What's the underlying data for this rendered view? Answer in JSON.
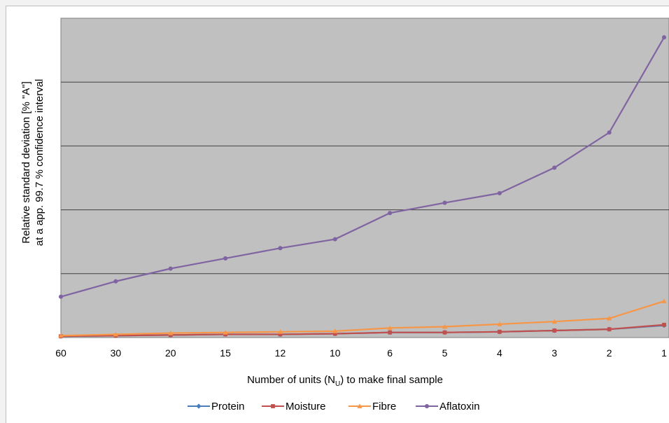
{
  "chart_data": {
    "type": "line",
    "title": "",
    "ylabel_line1": "Relative standard deviation [% \"A\"]",
    "ylabel_line2": "at a app. 99.7 % confidence interval",
    "xlabel_main": "Number of units (N",
    "xlabel_sub": "U",
    "xlabel_tail": ") to make final sample",
    "categories": [
      "60",
      "30",
      "20",
      "15",
      "12",
      "10",
      "6",
      "5",
      "4",
      "3",
      "2",
      "1"
    ],
    "ylim": [
      0,
      5
    ],
    "y_tick_labels_shown": false,
    "grid": "horizontal",
    "legend_position": "bottom",
    "series": [
      {
        "name": "Protein",
        "color": "#4a7ebb",
        "marker": "diamond",
        "values": [
          0.02,
          0.03,
          0.04,
          0.05,
          0.05,
          0.06,
          0.08,
          0.08,
          0.09,
          0.11,
          0.13,
          0.19
        ]
      },
      {
        "name": "Moisture",
        "color": "#c0504d",
        "marker": "square",
        "values": [
          0.02,
          0.03,
          0.04,
          0.05,
          0.05,
          0.06,
          0.08,
          0.08,
          0.09,
          0.11,
          0.13,
          0.2
        ]
      },
      {
        "name": "Fibre",
        "color": "#f79646",
        "marker": "triangle",
        "values": [
          0.03,
          0.05,
          0.07,
          0.08,
          0.09,
          0.1,
          0.15,
          0.17,
          0.21,
          0.25,
          0.3,
          0.57
        ]
      },
      {
        "name": "Aflatoxin",
        "color": "#8064a2",
        "marker": "circle",
        "values": [
          0.64,
          0.88,
          1.08,
          1.24,
          1.4,
          1.54,
          1.95,
          2.11,
          2.26,
          2.66,
          3.21,
          4.7
        ]
      }
    ]
  }
}
